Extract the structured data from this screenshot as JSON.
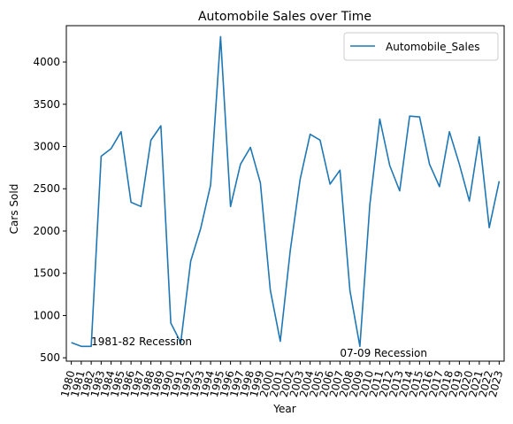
{
  "chart_data": {
    "type": "line",
    "title": "Automobile Sales over Time",
    "xlabel": "Year",
    "ylabel": "Cars Sold",
    "x": [
      1980,
      1981,
      1982,
      1983,
      1984,
      1985,
      1986,
      1987,
      1988,
      1989,
      1990,
      1991,
      1992,
      1993,
      1994,
      1995,
      1996,
      1997,
      1998,
      1999,
      2000,
      2001,
      2002,
      2003,
      2004,
      2005,
      2006,
      2007,
      2008,
      2009,
      2010,
      2011,
      2012,
      2013,
      2014,
      2015,
      2016,
      2017,
      2018,
      2019,
      2020,
      2021,
      2022,
      2023
    ],
    "series": [
      {
        "name": "Automobile_Sales",
        "color": "#1f77b4",
        "values": [
          680,
          635,
          635,
          2885,
          2975,
          3175,
          2340,
          2290,
          3075,
          3245,
          910,
          680,
          1645,
          2030,
          2545,
          4300,
          2290,
          2790,
          2990,
          2570,
          1300,
          695,
          1765,
          2615,
          3145,
          3075,
          2555,
          2720,
          1295,
          635,
          2310,
          3325,
          2775,
          2475,
          3360,
          3350,
          2790,
          2525,
          3175,
          2790,
          2355,
          3115,
          2040,
          2590
        ]
      }
    ],
    "ylim": [
      460,
      4430
    ],
    "yticks": [
      500,
      1000,
      1500,
      2000,
      2500,
      3000,
      3500,
      4000
    ],
    "legend": "top-right",
    "grid": false,
    "annotations": [
      {
        "text": "1981-82 Recession",
        "x": 1982,
        "y": 650
      },
      {
        "text": "07-09 Recession",
        "x": 2007,
        "y": 510
      }
    ]
  }
}
